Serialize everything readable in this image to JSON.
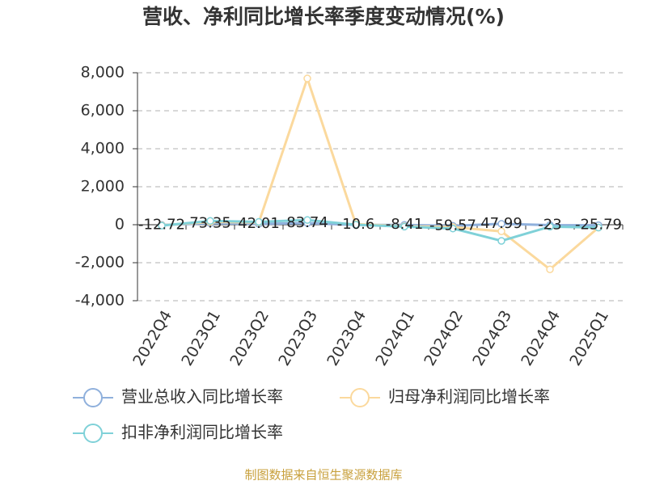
{
  "chart_data": {
    "type": "line",
    "title": "营收、净利同比增长率季度变动情况(%)",
    "categories": [
      "2022Q4",
      "2023Q1",
      "2023Q2",
      "2023Q3",
      "2023Q4",
      "2024Q1",
      "2024Q2",
      "2024Q3",
      "2024Q4",
      "2025Q1"
    ],
    "series": [
      {
        "name": "营业总收入同比增长率",
        "color": "#8fb0dc",
        "values": [
          -12.72,
          73.35,
          42.01,
          83.74,
          -10.6,
          -8.41,
          -59.57,
          47.99,
          -23,
          -25.79
        ]
      },
      {
        "name": "归母净利润同比增长率",
        "color": "#fbd99d",
        "values": [
          -30,
          150,
          120,
          7700,
          30,
          -80,
          -120,
          -350,
          -2350,
          -150
        ]
      },
      {
        "name": "扣非净利润同比增长率",
        "color": "#7fd1d8",
        "values": [
          -50,
          200,
          150,
          250,
          0,
          -100,
          -200,
          -850,
          -100,
          -150
        ]
      }
    ],
    "ylim": [
      -4000,
      8000
    ],
    "yticks": [
      {
        "value": -4000,
        "label": "-4,000"
      },
      {
        "value": -2000,
        "label": "-2,000"
      },
      0,
      {
        "value": 2000,
        "label": "2,000"
      },
      {
        "value": 4000,
        "label": "4,000"
      },
      {
        "value": 6000,
        "label": "6,000"
      },
      {
        "value": 8000,
        "label": "8,000"
      }
    ],
    "grid": true,
    "source": "制图数据来自恒生聚源数据库"
  }
}
